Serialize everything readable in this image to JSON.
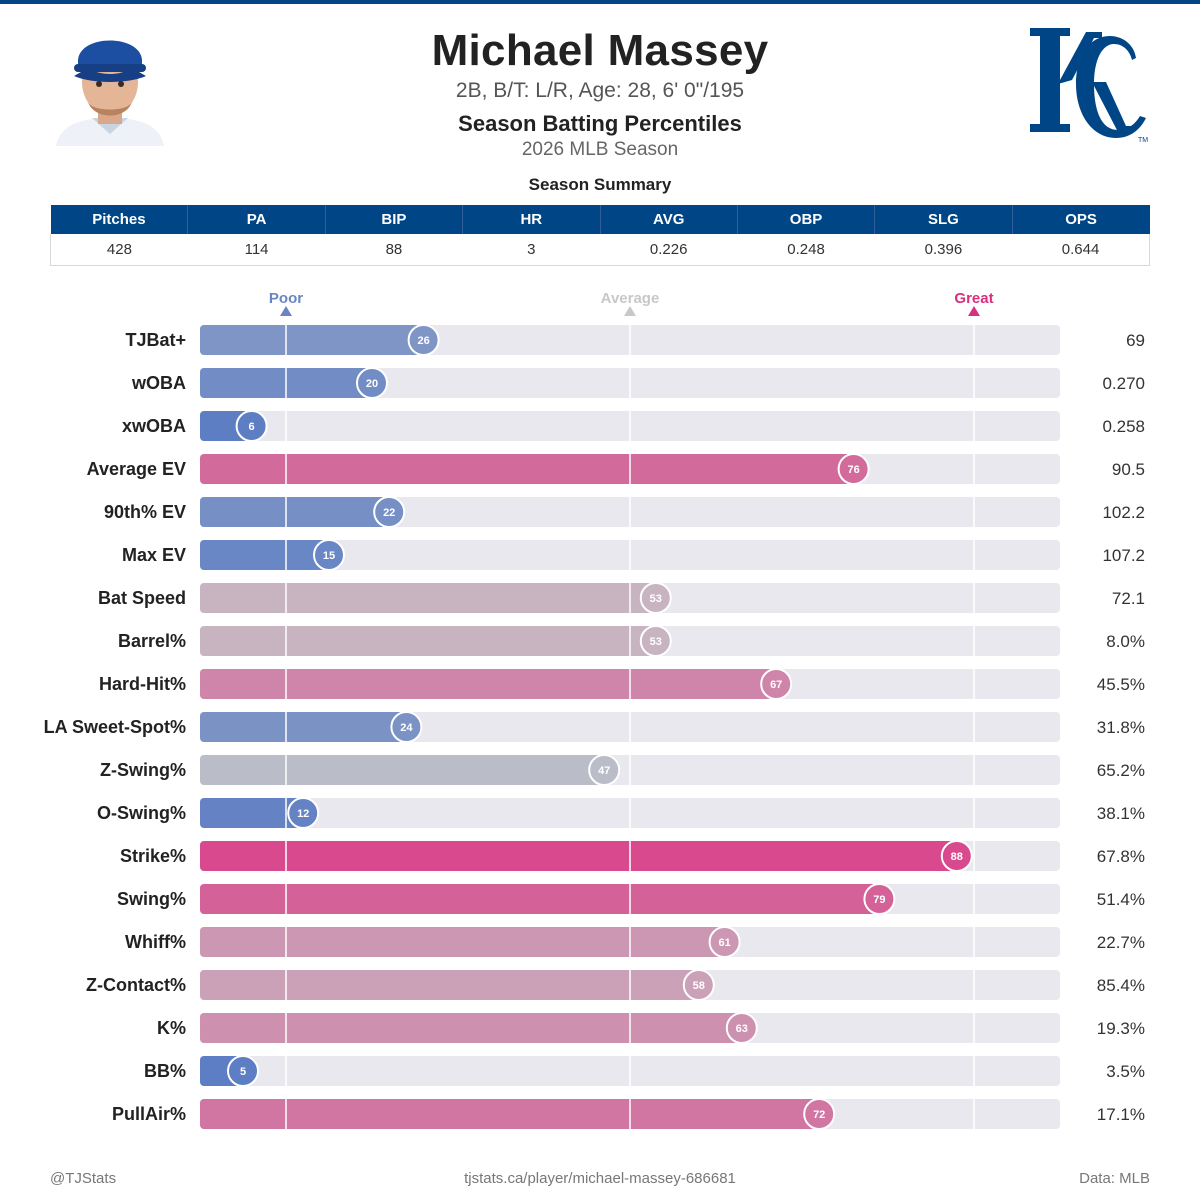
{
  "header": {
    "name": "Michael Massey",
    "info": "2B, B/T: L/R, Age: 28, 6' 0\"/195",
    "report_title": "Season Batting Percentiles",
    "season": "2026 MLB Season",
    "logo_text": "KC",
    "logo_tm": "TM"
  },
  "summary": {
    "title": "Season Summary",
    "headers": [
      "Pitches",
      "PA",
      "BIP",
      "HR",
      "AVG",
      "OBP",
      "SLG",
      "OPS"
    ],
    "values": [
      "428",
      "114",
      "88",
      "3",
      "0.226",
      "0.248",
      "0.396",
      "0.644"
    ]
  },
  "scale": {
    "poor": "Poor",
    "average": "Average",
    "great": "Great",
    "poor_color": "#6a86c2",
    "average_color": "#c8c8c8",
    "great_color": "#d8307c"
  },
  "colors": {
    "brand": "#004687",
    "track": "#e8e8ee"
  },
  "chart_data": {
    "type": "bar",
    "orientation": "horizontal",
    "xlim": [
      0,
      100
    ],
    "reference_lines": [
      10,
      50,
      90
    ],
    "categories": [
      "TJBat+",
      "wOBA",
      "xwOBA",
      "Average EV",
      "90th% EV",
      "Max EV",
      "Bat Speed",
      "Barrel%",
      "Hard-Hit%",
      "LA Sweet-Spot%",
      "Z-Swing%",
      "O-Swing%",
      "Strike%",
      "Swing%",
      "Whiff%",
      "Z-Contact%",
      "K%",
      "BB%",
      "PullAir%"
    ],
    "values": [
      26,
      20,
      6,
      76,
      22,
      15,
      53,
      53,
      67,
      24,
      47,
      12,
      88,
      79,
      61,
      58,
      63,
      5,
      72
    ],
    "stat_values": [
      "69",
      "0.270",
      "0.258",
      "90.5",
      "102.2",
      "107.2",
      "72.1",
      "8.0%",
      "45.5%",
      "31.8%",
      "65.2%",
      "38.1%",
      "67.8%",
      "51.4%",
      "22.7%",
      "85.4%",
      "19.3%",
      "3.5%",
      "17.1%"
    ]
  },
  "footer": {
    "left": "@TJStats",
    "center": "tjstats.ca/player/michael-massey-686681",
    "right": "Data: MLB"
  }
}
